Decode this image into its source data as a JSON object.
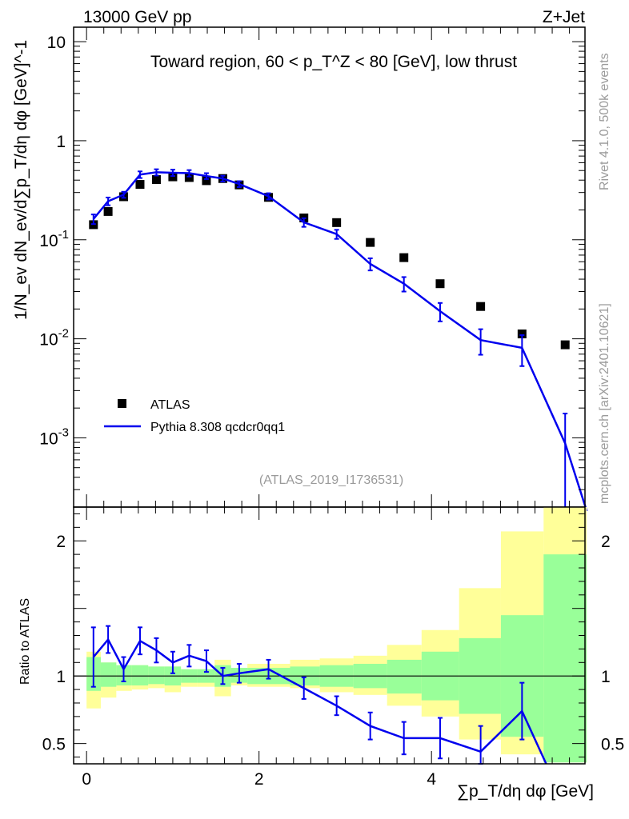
{
  "header": {
    "left": "13000 GeV pp",
    "right": "Z+Jet"
  },
  "side_labels": {
    "rivet": "Rivet 4.1.0,  500k events",
    "site": "mcplots.cern.ch [arXiv:2401.10621]"
  },
  "colors": {
    "data": "#000000",
    "mc": "#0000ee",
    "band_inner": "#99ff99",
    "band_outer": "#ffff99"
  },
  "chart_data": [
    {
      "type": "scatter",
      "panel": "main",
      "title": "Toward region, 60 < p_T^Z < 80 [GeV], low thrust",
      "ylabel": "1/N_ev dN_ev/d∑p_T/dη dφ [GeV]^-1",
      "yscale": "log",
      "xlim": [
        -0.15,
        5.78
      ],
      "ylim": [
        0.0002,
        14
      ],
      "yticks": [
        0.001,
        0.01,
        0.1,
        1,
        10
      ],
      "ytick_labels": [
        "10^-3",
        "10^-2",
        "10^-1",
        "1",
        "10"
      ],
      "legend": [
        {
          "label": "ATLAS",
          "marker": "square"
        },
        {
          "label": "Pythia 8.308 qcdcr0qq1",
          "marker": "line"
        }
      ],
      "legend_position": "bottom-left",
      "watermark": "(ATLAS_2019_I1736531)",
      "series": [
        {
          "name": "ATLAS",
          "x": [
            0.08,
            0.25,
            0.43,
            0.62,
            0.81,
            1.0,
            1.19,
            1.39,
            1.58,
            1.77,
            2.11,
            2.52,
            2.9,
            3.29,
            3.68,
            4.1,
            4.57,
            5.05,
            5.55
          ],
          "y": [
            0.142,
            0.193,
            0.272,
            0.362,
            0.405,
            0.432,
            0.425,
            0.395,
            0.415,
            0.358,
            0.268,
            0.166,
            0.149,
            0.094,
            0.066,
            0.036,
            0.0212,
            0.0112,
            0.0087
          ]
        },
        {
          "name": "Pythia 8.308 qcdcr0qq1",
          "x": [
            0.08,
            0.25,
            0.43,
            0.62,
            0.81,
            1.0,
            1.19,
            1.39,
            1.58,
            1.77,
            2.11,
            2.52,
            2.9,
            3.29,
            3.68,
            4.1,
            4.57,
            5.05,
            5.55
          ],
          "y": [
            0.162,
            0.245,
            0.285,
            0.455,
            0.48,
            0.475,
            0.47,
            0.44,
            0.415,
            0.365,
            0.275,
            0.15,
            0.114,
            0.057,
            0.036,
            0.019,
            0.0097,
            0.0081,
            0.00088
          ],
          "yerr": [
            0.018,
            0.022,
            0.02,
            0.035,
            0.035,
            0.035,
            0.035,
            0.03,
            0.028,
            0.025,
            0.02,
            0.015,
            0.012,
            0.008,
            0.006,
            0.004,
            0.0028,
            0.0028,
            0.00088
          ]
        }
      ]
    },
    {
      "type": "line",
      "panel": "ratio",
      "ylabel": "Ratio to ATLAS",
      "xlabel": "∑p_T/dη dφ [GeV]",
      "xlim": [
        -0.15,
        5.78
      ],
      "ylim": [
        0.35,
        2.25
      ],
      "xticks": [
        0,
        2,
        4
      ],
      "yticks": [
        0.5,
        1,
        2
      ],
      "band_edges": [
        0,
        0.165,
        0.345,
        0.525,
        0.715,
        0.905,
        1.095,
        1.285,
        1.485,
        1.675,
        1.865,
        2.36,
        2.705,
        3.095,
        3.485,
        3.885,
        4.32,
        4.805,
        5.3,
        5.8
      ],
      "band_inner": [
        [
          0.89,
          1.14
        ],
        [
          0.92,
          1.1
        ],
        [
          0.93,
          1.08
        ],
        [
          0.93,
          1.08
        ],
        [
          0.94,
          1.07
        ],
        [
          0.93,
          1.07
        ],
        [
          0.95,
          1.05
        ],
        [
          0.95,
          1.05
        ],
        [
          0.92,
          1.08
        ],
        [
          0.95,
          1.06
        ],
        [
          0.94,
          1.06
        ],
        [
          0.93,
          1.07
        ],
        [
          0.92,
          1.08
        ],
        [
          0.91,
          1.09
        ],
        [
          0.87,
          1.12
        ],
        [
          0.82,
          1.18
        ],
        [
          0.72,
          1.28
        ],
        [
          0.55,
          1.45
        ],
        [
          0.36,
          1.9
        ]
      ],
      "band_outer": [
        [
          0.76,
          1.18
        ],
        [
          0.84,
          1.1
        ],
        [
          0.89,
          1.08
        ],
        [
          0.9,
          1.08
        ],
        [
          0.91,
          1.07
        ],
        [
          0.88,
          1.07
        ],
        [
          0.92,
          1.05
        ],
        [
          0.92,
          1.05
        ],
        [
          0.85,
          1.12
        ],
        [
          0.93,
          1.06
        ],
        [
          0.92,
          1.09
        ],
        [
          0.91,
          1.12
        ],
        [
          0.88,
          1.13
        ],
        [
          0.86,
          1.15
        ],
        [
          0.78,
          1.23
        ],
        [
          0.7,
          1.34
        ],
        [
          0.53,
          1.65
        ],
        [
          0.42,
          2.07
        ],
        [
          0.36,
          2.25
        ]
      ],
      "series": [
        {
          "name": "Pythia 8.308 qcdcr0qq1",
          "x": [
            0.08,
            0.25,
            0.43,
            0.62,
            0.81,
            1.0,
            1.19,
            1.39,
            1.58,
            1.77,
            2.11,
            2.52,
            2.9,
            3.29,
            3.68,
            4.1,
            4.57,
            5.05,
            5.33
          ],
          "y": [
            1.14,
            1.27,
            1.05,
            1.26,
            1.19,
            1.1,
            1.15,
            1.11,
            1.0,
            1.02,
            1.05,
            0.91,
            0.78,
            0.63,
            0.54,
            0.54,
            0.44,
            0.74,
            0.35
          ],
          "yerr": [
            0.22,
            0.1,
            0.09,
            0.1,
            0.09,
            0.08,
            0.08,
            0.08,
            0.06,
            0.07,
            0.07,
            0.08,
            0.07,
            0.1,
            0.12,
            0.15,
            0.19,
            0.21,
            0.0
          ]
        }
      ]
    }
  ]
}
